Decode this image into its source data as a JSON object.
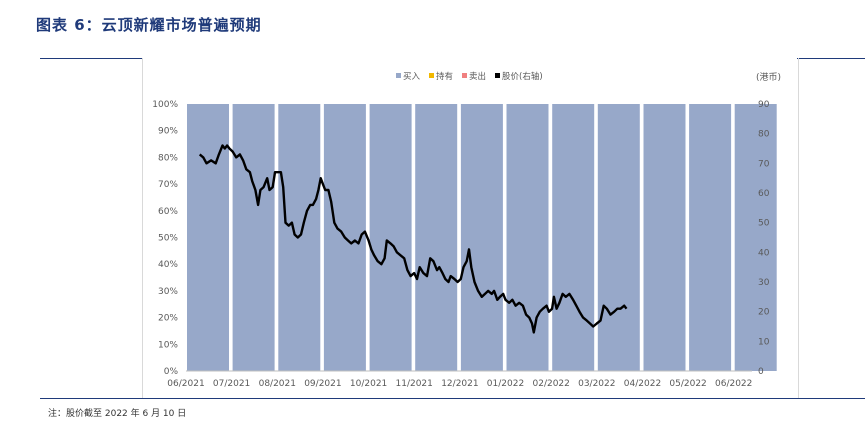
{
  "title": "图表 6：云顶新耀市场普遍预期",
  "note": "注：股价截至 2022 年 6 月 10 日",
  "chart_data": {
    "type": "bar",
    "categories": [
      "06/2021",
      "07/2021",
      "08/2021",
      "09/2021",
      "10/2021",
      "11/2021",
      "12/2021",
      "01/2022",
      "02/2022",
      "03/2022",
      "04/2022",
      "05/2022",
      "06/2022"
    ],
    "series": [
      {
        "name": "买入",
        "values": [
          100,
          100,
          100,
          100,
          100,
          100,
          100,
          100,
          100,
          100,
          100,
          100,
          100
        ],
        "color": "#97a8c9"
      },
      {
        "name": "持有",
        "values": [
          0,
          0,
          0,
          0,
          0,
          0,
          0,
          0,
          0,
          0,
          0,
          0,
          0
        ],
        "color": "#f2b800"
      },
      {
        "name": "卖出",
        "values": [
          0,
          0,
          0,
          0,
          0,
          0,
          0,
          0,
          0,
          0,
          0,
          0,
          0
        ],
        "color": "#f08080"
      }
    ],
    "price_series": {
      "name": "股价(右轴)",
      "color": "#000000",
      "points": [
        [
          0.3,
          73
        ],
        [
          0.38,
          72
        ],
        [
          0.45,
          70
        ],
        [
          0.55,
          71
        ],
        [
          0.65,
          70
        ],
        [
          0.72,
          73
        ],
        [
          0.8,
          76
        ],
        [
          0.85,
          75
        ],
        [
          0.9,
          76
        ],
        [
          0.95,
          75
        ],
        [
          1.02,
          74
        ],
        [
          1.1,
          72
        ],
        [
          1.18,
          73
        ],
        [
          1.25,
          71
        ],
        [
          1.32,
          68
        ],
        [
          1.4,
          67
        ],
        [
          1.45,
          64
        ],
        [
          1.52,
          61
        ],
        [
          1.58,
          56
        ],
        [
          1.63,
          61
        ],
        [
          1.7,
          62
        ],
        [
          1.78,
          65
        ],
        [
          1.83,
          61
        ],
        [
          1.9,
          62
        ],
        [
          1.95,
          67
        ],
        [
          2.02,
          67
        ],
        [
          2.08,
          67
        ],
        [
          2.13,
          62
        ],
        [
          2.18,
          50
        ],
        [
          2.25,
          49
        ],
        [
          2.32,
          50
        ],
        [
          2.38,
          46
        ],
        [
          2.45,
          45
        ],
        [
          2.52,
          46
        ],
        [
          2.58,
          50
        ],
        [
          2.65,
          54
        ],
        [
          2.72,
          56
        ],
        [
          2.78,
          56
        ],
        [
          2.85,
          58
        ],
        [
          2.9,
          61
        ],
        [
          2.95,
          65
        ],
        [
          3.0,
          63
        ],
        [
          3.05,
          61
        ],
        [
          3.12,
          61
        ],
        [
          3.18,
          57
        ],
        [
          3.25,
          50
        ],
        [
          3.32,
          48
        ],
        [
          3.4,
          47
        ],
        [
          3.48,
          45
        ],
        [
          3.55,
          44
        ],
        [
          3.62,
          43
        ],
        [
          3.7,
          44
        ],
        [
          3.78,
          43
        ],
        [
          3.85,
          46
        ],
        [
          3.92,
          47
        ],
        [
          4.0,
          44
        ],
        [
          4.06,
          41
        ],
        [
          4.12,
          39
        ],
        [
          4.2,
          37
        ],
        [
          4.28,
          36
        ],
        [
          4.35,
          38
        ],
        [
          4.4,
          44
        ],
        [
          4.48,
          43
        ],
        [
          4.55,
          42
        ],
        [
          4.62,
          40
        ],
        [
          4.7,
          39
        ],
        [
          4.78,
          38
        ],
        [
          4.85,
          34
        ],
        [
          4.92,
          32
        ],
        [
          5.0,
          33
        ],
        [
          5.06,
          31
        ],
        [
          5.12,
          35
        ],
        [
          5.2,
          33
        ],
        [
          5.28,
          32
        ],
        [
          5.35,
          38
        ],
        [
          5.42,
          37
        ],
        [
          5.5,
          34
        ],
        [
          5.55,
          35
        ],
        [
          5.62,
          33
        ],
        [
          5.68,
          31
        ],
        [
          5.75,
          30
        ],
        [
          5.8,
          32
        ],
        [
          5.88,
          31
        ],
        [
          5.95,
          30
        ],
        [
          6.02,
          31
        ],
        [
          6.08,
          35
        ],
        [
          6.15,
          37
        ],
        [
          6.2,
          41
        ],
        [
          6.25,
          35
        ],
        [
          6.32,
          30
        ],
        [
          6.4,
          27
        ],
        [
          6.48,
          25
        ],
        [
          6.55,
          26
        ],
        [
          6.62,
          27
        ],
        [
          6.7,
          26
        ],
        [
          6.75,
          27
        ],
        [
          6.82,
          24
        ],
        [
          6.88,
          25
        ],
        [
          6.95,
          26
        ],
        [
          7.0,
          24
        ],
        [
          7.08,
          23
        ],
        [
          7.15,
          24
        ],
        [
          7.22,
          22
        ],
        [
          7.3,
          23
        ],
        [
          7.38,
          22
        ],
        [
          7.45,
          19
        ],
        [
          7.52,
          18
        ],
        [
          7.58,
          16
        ],
        [
          7.62,
          13
        ],
        [
          7.68,
          18
        ],
        [
          7.75,
          20
        ],
        [
          7.82,
          21
        ],
        [
          7.9,
          22
        ],
        [
          7.95,
          20
        ],
        [
          8.02,
          21
        ],
        [
          8.06,
          25
        ],
        [
          8.12,
          21
        ],
        [
          8.18,
          23
        ],
        [
          8.25,
          26
        ],
        [
          8.32,
          25
        ],
        [
          8.4,
          26
        ],
        [
          8.48,
          24
        ],
        [
          8.55,
          22
        ],
        [
          8.62,
          20
        ],
        [
          8.7,
          18
        ],
        [
          8.78,
          17
        ],
        [
          8.85,
          16
        ],
        [
          8.92,
          15
        ],
        [
          9.0,
          16
        ],
        [
          9.08,
          17
        ],
        [
          9.15,
          22
        ],
        [
          9.22,
          21
        ],
        [
          9.3,
          19
        ],
        [
          9.38,
          20
        ],
        [
          9.45,
          21
        ],
        [
          9.52,
          21
        ],
        [
          9.6,
          22
        ],
        [
          9.65,
          21
        ]
      ]
    },
    "y_left": {
      "min": 0,
      "max": 100,
      "ticks": [
        "0%",
        "10%",
        "20%",
        "30%",
        "40%",
        "50%",
        "60%",
        "70%",
        "80%",
        "90%",
        "100%"
      ]
    },
    "y_right": {
      "min": 0,
      "max": 90,
      "ticks": [
        "0",
        "10",
        "20",
        "30",
        "40",
        "50",
        "60",
        "70",
        "80",
        "90"
      ],
      "unit_label": "(港币)"
    },
    "legend_position": "top",
    "grid": false
  }
}
